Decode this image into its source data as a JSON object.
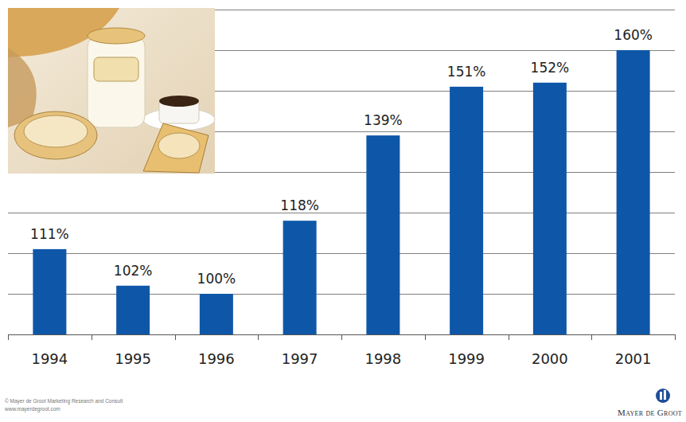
{
  "chart_data": {
    "type": "bar",
    "categories": [
      "1994",
      "1995",
      "1996",
      "1997",
      "1998",
      "1999",
      "2000",
      "2001"
    ],
    "values": [
      111,
      102,
      100,
      118,
      139,
      151,
      152,
      160
    ],
    "value_labels": [
      "111%",
      "102%",
      "100%",
      "118%",
      "139%",
      "151%",
      "152%",
      "160%"
    ],
    "color": "#0e57a8",
    "ylim": [
      90,
      170
    ],
    "yticks": [
      90,
      100,
      110,
      120,
      130,
      140,
      150,
      160,
      170
    ],
    "grid": true,
    "data_labels": true,
    "tick_labels": "x",
    "annotations": [
      "© Mayer de Groot Marketing Research and Consult",
      "www.mayerdegroot.com",
      "Mayer de Groot"
    ]
  }
}
